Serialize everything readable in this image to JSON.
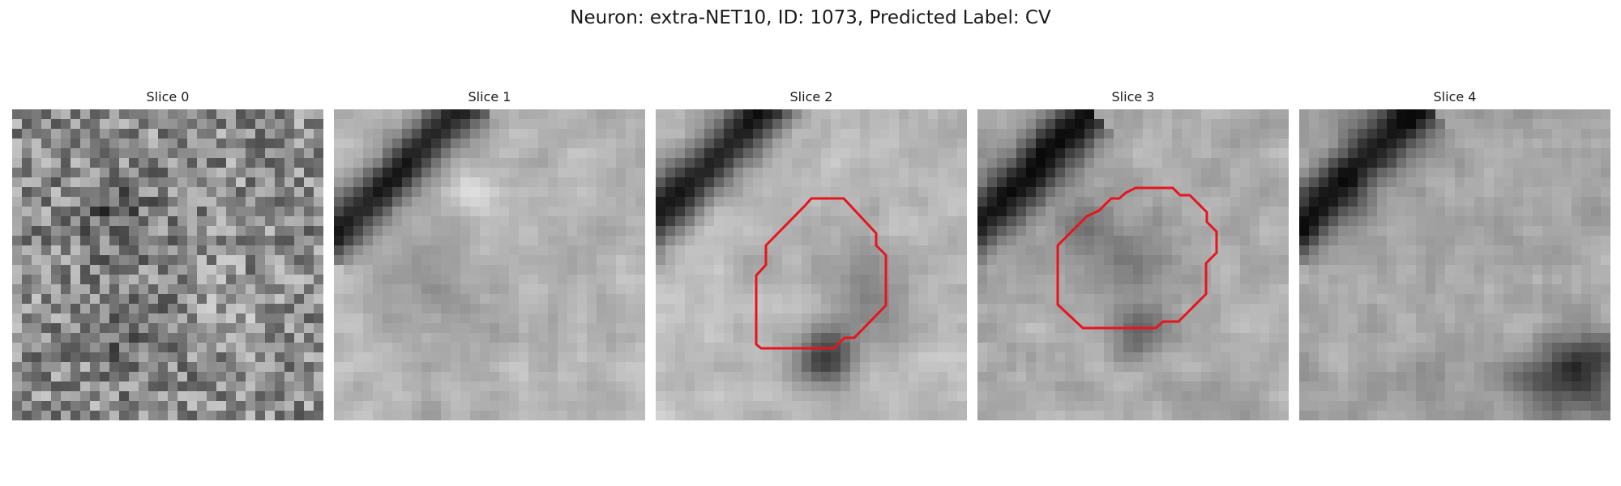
{
  "figure": {
    "title": "Neuron: extra-NET10, ID: 1073, Predicted Label: CV"
  },
  "panels": [
    {
      "title": "Slice 0",
      "image": "grayscale-microscopy-patch",
      "has_contour": false
    },
    {
      "title": "Slice 1",
      "image": "grayscale-microscopy-patch",
      "has_contour": false
    },
    {
      "title": "Slice 2",
      "image": "grayscale-microscopy-patch",
      "has_contour": true
    },
    {
      "title": "Slice 3",
      "image": "grayscale-microscopy-patch",
      "has_contour": true
    },
    {
      "title": "Slice 4",
      "image": "grayscale-microscopy-patch",
      "has_contour": false
    }
  ],
  "colors": {
    "contour": "#e8141c"
  }
}
